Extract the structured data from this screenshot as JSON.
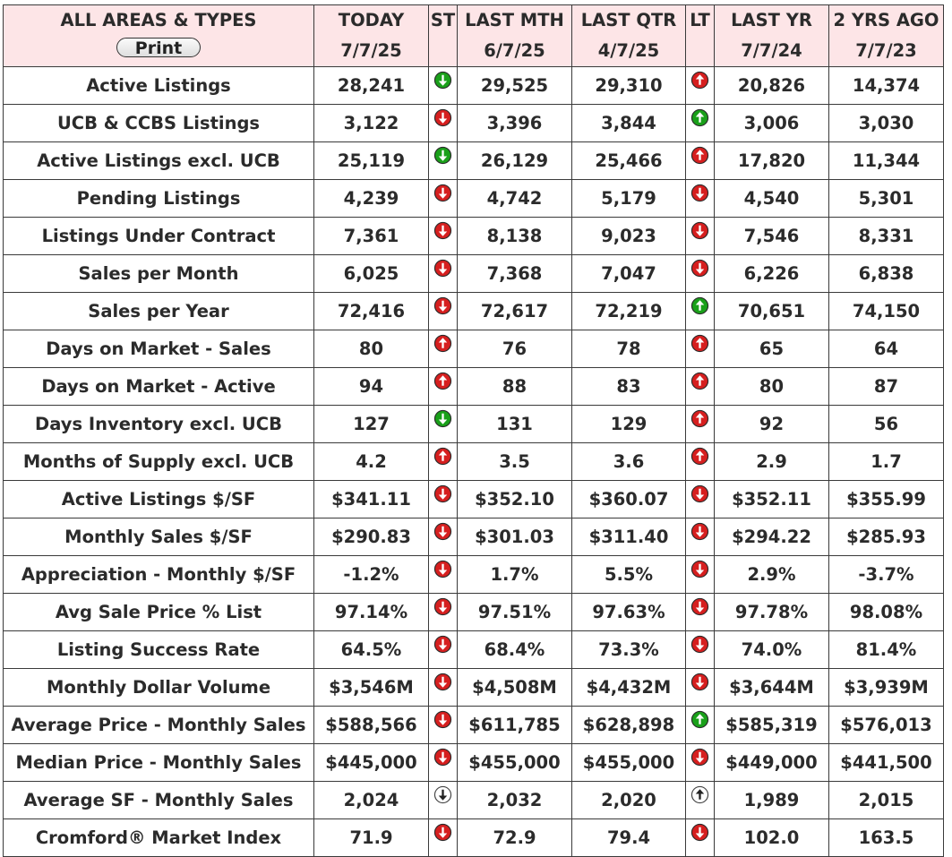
{
  "header": {
    "corner_title": "ALL AREAS & TYPES",
    "print_label": "Print",
    "columns": [
      {
        "key": "today",
        "label": "TODAY",
        "date": "7/7/25"
      },
      {
        "key": "st",
        "label": "ST",
        "date": ""
      },
      {
        "key": "last_mth",
        "label": "LAST MTH",
        "date": "6/7/25"
      },
      {
        "key": "last_qtr",
        "label": "LAST QTR",
        "date": "4/7/25"
      },
      {
        "key": "lt",
        "label": "LT",
        "date": ""
      },
      {
        "key": "last_yr",
        "label": "LAST YR",
        "date": "7/7/24"
      },
      {
        "key": "two_yrs_ago",
        "label": "2 YRS AGO",
        "date": "7/7/23"
      }
    ]
  },
  "indicator_legend": {
    "green-down-arrow-icon": "#1aa01a",
    "red-down-arrow-icon": "#d61f1f",
    "red-up-arrow-icon": "#d61f1f",
    "green-up-arrow-icon": "#1aa01a",
    "white-down-arrow-icon": "#ffffff",
    "white-up-arrow-icon": "#ffffff"
  },
  "rows": [
    {
      "label": "Active Listings",
      "today": "28,241",
      "st": "green-down-arrow-icon",
      "last_mth": "29,525",
      "last_qtr": "29,310",
      "lt": "red-up-arrow-icon",
      "last_yr": "20,826",
      "two_yrs_ago": "14,374"
    },
    {
      "label": "UCB & CCBS Listings",
      "today": "3,122",
      "st": "red-down-arrow-icon",
      "last_mth": "3,396",
      "last_qtr": "3,844",
      "lt": "green-up-arrow-icon",
      "last_yr": "3,006",
      "two_yrs_ago": "3,030"
    },
    {
      "label": "Active Listings excl. UCB",
      "today": "25,119",
      "st": "green-down-arrow-icon",
      "last_mth": "26,129",
      "last_qtr": "25,466",
      "lt": "red-up-arrow-icon",
      "last_yr": "17,820",
      "two_yrs_ago": "11,344"
    },
    {
      "label": "Pending Listings",
      "today": "4,239",
      "st": "red-down-arrow-icon",
      "last_mth": "4,742",
      "last_qtr": "5,179",
      "lt": "red-down-arrow-icon",
      "last_yr": "4,540",
      "two_yrs_ago": "5,301"
    },
    {
      "label": "Listings Under Contract",
      "today": "7,361",
      "st": "red-down-arrow-icon",
      "last_mth": "8,138",
      "last_qtr": "9,023",
      "lt": "red-down-arrow-icon",
      "last_yr": "7,546",
      "two_yrs_ago": "8,331"
    },
    {
      "label": "Sales per Month",
      "today": "6,025",
      "st": "red-down-arrow-icon",
      "last_mth": "7,368",
      "last_qtr": "7,047",
      "lt": "red-down-arrow-icon",
      "last_yr": "6,226",
      "two_yrs_ago": "6,838"
    },
    {
      "label": "Sales per Year",
      "today": "72,416",
      "st": "red-down-arrow-icon",
      "last_mth": "72,617",
      "last_qtr": "72,219",
      "lt": "green-up-arrow-icon",
      "last_yr": "70,651",
      "two_yrs_ago": "74,150"
    },
    {
      "label": "Days on Market - Sales",
      "today": "80",
      "st": "red-up-arrow-icon",
      "last_mth": "76",
      "last_qtr": "78",
      "lt": "red-up-arrow-icon",
      "last_yr": "65",
      "two_yrs_ago": "64"
    },
    {
      "label": "Days on Market - Active",
      "today": "94",
      "st": "red-up-arrow-icon",
      "last_mth": "88",
      "last_qtr": "83",
      "lt": "red-up-arrow-icon",
      "last_yr": "80",
      "two_yrs_ago": "87"
    },
    {
      "label": "Days Inventory excl. UCB",
      "today": "127",
      "st": "green-down-arrow-icon",
      "last_mth": "131",
      "last_qtr": "129",
      "lt": "red-up-arrow-icon",
      "last_yr": "92",
      "two_yrs_ago": "56"
    },
    {
      "label": "Months of Supply excl. UCB",
      "today": "4.2",
      "st": "red-up-arrow-icon",
      "last_mth": "3.5",
      "last_qtr": "3.6",
      "lt": "red-up-arrow-icon",
      "last_yr": "2.9",
      "two_yrs_ago": "1.7"
    },
    {
      "label": "Active Listings $/SF",
      "today": "$341.11",
      "st": "red-down-arrow-icon",
      "last_mth": "$352.10",
      "last_qtr": "$360.07",
      "lt": "red-down-arrow-icon",
      "last_yr": "$352.11",
      "two_yrs_ago": "$355.99"
    },
    {
      "label": "Monthly Sales $/SF",
      "today": "$290.83",
      "st": "red-down-arrow-icon",
      "last_mth": "$301.03",
      "last_qtr": "$311.40",
      "lt": "red-down-arrow-icon",
      "last_yr": "$294.22",
      "two_yrs_ago": "$285.93"
    },
    {
      "label": "Appreciation - Monthly $/SF",
      "today": "-1.2%",
      "st": "red-down-arrow-icon",
      "last_mth": "1.7%",
      "last_qtr": "5.5%",
      "lt": "red-down-arrow-icon",
      "last_yr": "2.9%",
      "two_yrs_ago": "-3.7%"
    },
    {
      "label": "Avg Sale Price % List",
      "today": "97.14%",
      "st": "red-down-arrow-icon",
      "last_mth": "97.51%",
      "last_qtr": "97.63%",
      "lt": "red-down-arrow-icon",
      "last_yr": "97.78%",
      "two_yrs_ago": "98.08%"
    },
    {
      "label": "Listing Success Rate",
      "today": "64.5%",
      "st": "red-down-arrow-icon",
      "last_mth": "68.4%",
      "last_qtr": "73.3%",
      "lt": "red-down-arrow-icon",
      "last_yr": "74.0%",
      "two_yrs_ago": "81.4%"
    },
    {
      "label": "Monthly Dollar Volume",
      "today": "$3,546M",
      "st": "red-down-arrow-icon",
      "last_mth": "$4,508M",
      "last_qtr": "$4,432M",
      "lt": "red-down-arrow-icon",
      "last_yr": "$3,644M",
      "two_yrs_ago": "$3,939M"
    },
    {
      "label": "Average Price - Monthly Sales",
      "today": "$588,566",
      "st": "red-down-arrow-icon",
      "last_mth": "$611,785",
      "last_qtr": "$628,898",
      "lt": "green-up-arrow-icon",
      "last_yr": "$585,319",
      "two_yrs_ago": "$576,013"
    },
    {
      "label": "Median Price - Monthly Sales",
      "today": "$445,000",
      "st": "red-down-arrow-icon",
      "last_mth": "$455,000",
      "last_qtr": "$455,000",
      "lt": "red-down-arrow-icon",
      "last_yr": "$449,000",
      "two_yrs_ago": "$441,500"
    },
    {
      "label": "Average SF - Monthly Sales",
      "today": "2,024",
      "st": "white-down-arrow-icon",
      "last_mth": "2,032",
      "last_qtr": "2,020",
      "lt": "white-up-arrow-icon",
      "last_yr": "1,989",
      "two_yrs_ago": "2,015"
    },
    {
      "label": "Cromford® Market Index",
      "today": "71.9",
      "st": "red-down-arrow-icon",
      "last_mth": "72.9",
      "last_qtr": "79.4",
      "lt": "red-down-arrow-icon",
      "last_yr": "102.0",
      "two_yrs_ago": "163.5"
    }
  ]
}
